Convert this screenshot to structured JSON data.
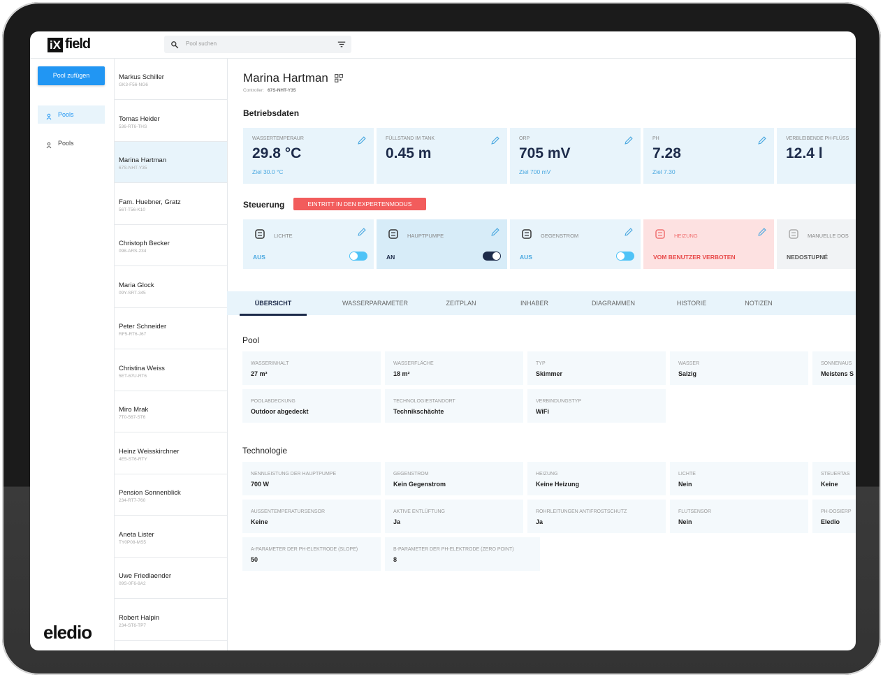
{
  "brand": {
    "mark": "iX",
    "name": "field"
  },
  "search": {
    "placeholder": "Pool suchen"
  },
  "add_button": "Pool zufügen",
  "nav": [
    "Pools",
    "Pools"
  ],
  "footer_brand": "eledio",
  "pools": [
    {
      "name": "Markus Schiller",
      "code": "GK3-F56-NG6"
    },
    {
      "name": "Tomas Heider",
      "code": "536-RT6-THS"
    },
    {
      "name": "Marina Hartman",
      "code": "67S-NHT-Y35",
      "selected": true
    },
    {
      "name": "Fam. Huebner, Gratz",
      "code": "56T-T56-K10"
    },
    {
      "name": "Christoph Becker",
      "code": "098-ARS-234"
    },
    {
      "name": "Maria Glock",
      "code": "09Y-SRT-345"
    },
    {
      "name": "Peter Schneider",
      "code": "RF5-RT6-J67"
    },
    {
      "name": "Christina Weiss",
      "code": "5ET-67U-RT6"
    },
    {
      "name": "Miro Mrak",
      "code": "7T0-567-ST6"
    },
    {
      "name": "Heinz Weisskirchner",
      "code": "4E5-ST6-RTY"
    },
    {
      "name": "Pension Sonnenblick",
      "code": "234-RT7-760"
    },
    {
      "name": "Aneta Lister",
      "code": "TY0P08-MS5"
    },
    {
      "name": "Uwe Friedlaender",
      "code": "09S-0F6-8A2"
    },
    {
      "name": "Robert Halpin",
      "code": "234-ST6-TP7"
    }
  ],
  "detail": {
    "title": "Marina Hartman",
    "controller_label": "Controller:",
    "controller": "67S-NHT-Y35",
    "operations_heading": "Betriebsdaten",
    "metrics": [
      {
        "label": "WASSERTEMPERAUR",
        "value": "29.8 °C",
        "target": "Ziel 30.0 °C"
      },
      {
        "label": "FÜLLSTAND IM TANK",
        "value": "0.45 m"
      },
      {
        "label": "ORP",
        "value": "705 mV",
        "target": "Ziel 700 mV"
      },
      {
        "label": "PH",
        "value": "7.28",
        "target": "Ziel 7.30"
      },
      {
        "label": "VERBLEIBENDE PH-FLÜSS",
        "value": "12.4 l"
      }
    ],
    "control_heading": "Steuerung",
    "expert_button": "EINTRITT IN DEN EXPERTENMODUS",
    "controls": [
      {
        "label": "LICHTE",
        "state": "AUS",
        "on": false
      },
      {
        "label": "HAUPTPUMPE",
        "state": "AN",
        "on": true,
        "active": true
      },
      {
        "label": "GEGENSTROM",
        "state": "AUS",
        "on": false
      },
      {
        "label": "HEIZUNG",
        "state": "VOM BENUTZER VERBOTEN",
        "forbidden": true
      },
      {
        "label": "MANUELLE DOS",
        "state": "NEDOSTUPNÉ",
        "disabled": true
      }
    ],
    "tabs": [
      "ÜBERSICHT",
      "WASSERPARAMETER",
      "ZEITPLAN",
      "INHABER",
      "DIAGRAMMEN",
      "HISTORIE",
      "NOTIZEN"
    ],
    "active_tab": 0,
    "sections": [
      {
        "title": "Pool",
        "rows": [
          [
            {
              "label": "WASSERINHALT",
              "value": "27 m³"
            },
            {
              "label": "WASSERFLÄCHE",
              "value": "18 m²"
            },
            {
              "label": "TYP",
              "value": "Skimmer"
            },
            {
              "label": "WASSER",
              "value": "Salzig"
            },
            {
              "label": "SONNENAUS",
              "value": "Meistens S"
            }
          ],
          [
            {
              "label": "POOLABDECKUNG",
              "value": "Outdoor abgedeckt"
            },
            {
              "label": "TECHNOLOGIESTANDORT",
              "value": "Technikschächte"
            },
            {
              "label": "VERBINDUNGSTYP",
              "value": "WiFi"
            }
          ]
        ]
      },
      {
        "title": "Technologie",
        "rows": [
          [
            {
              "label": "NENNLEISTUNG DER HAUPTPUMPE",
              "value": "700 W"
            },
            {
              "label": "GEGENSTROM",
              "value": "Kein Gegenstrom"
            },
            {
              "label": "HEIZUNG",
              "value": "Keine Heizung"
            },
            {
              "label": "LICHTE",
              "value": "Nein"
            },
            {
              "label": "STEUERTAS",
              "value": "Keine"
            }
          ],
          [
            {
              "label": "AUSSENTEMPERATURSENSOR",
              "value": "Keine"
            },
            {
              "label": "AKTIVE ENTLÜFTUNG",
              "value": "Ja"
            },
            {
              "label": "ROHRLEITUNGEN ANTIFROSTSCHUTZ",
              "value": "Ja"
            },
            {
              "label": "FLUTSENSOR",
              "value": "Nein"
            },
            {
              "label": "PH-DOSIERP",
              "value": "Eledio"
            }
          ],
          [
            {
              "label": "A-PARAMETER DER PH-ELEKTRODE (SLOPE)",
              "value": "50"
            },
            {
              "label": "B-PARAMETER DER PH-ELEKTRODE (ZERO POINT)",
              "value": "8"
            }
          ]
        ]
      }
    ]
  }
}
